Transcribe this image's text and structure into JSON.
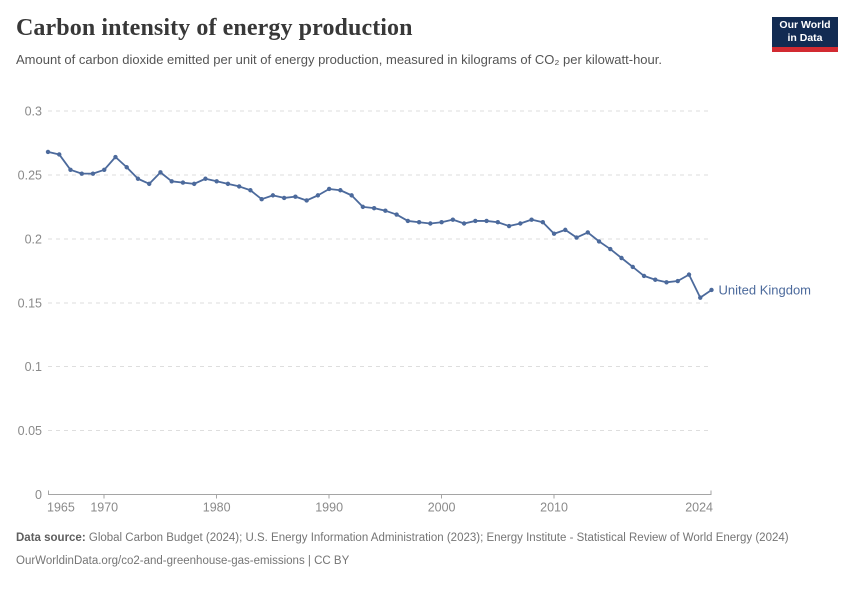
{
  "header": {
    "title": "Carbon intensity of energy production",
    "subtitle": "Amount of carbon dioxide emitted per unit of energy production, measured in kilograms of CO₂ per kilowatt-hour."
  },
  "logo": {
    "line1": "Our World",
    "line2": "in Data"
  },
  "colors": {
    "logo_bg": "#122B52",
    "logo_bar": "#D22A31",
    "accent_line": "#4C6A9C"
  },
  "chart_data": {
    "type": "line",
    "x": [
      1965,
      1966,
      1967,
      1968,
      1969,
      1970,
      1971,
      1972,
      1973,
      1974,
      1975,
      1976,
      1977,
      1978,
      1979,
      1980,
      1981,
      1982,
      1983,
      1984,
      1985,
      1986,
      1987,
      1988,
      1989,
      1990,
      1991,
      1992,
      1993,
      1994,
      1995,
      1996,
      1997,
      1998,
      1999,
      2000,
      2001,
      2002,
      2003,
      2004,
      2005,
      2006,
      2007,
      2008,
      2009,
      2010,
      2011,
      2012,
      2013,
      2014,
      2015,
      2016,
      2017,
      2018,
      2019,
      2020,
      2021,
      2022,
      2023,
      2024
    ],
    "series": [
      {
        "name": "United Kingdom",
        "color": "#4C6A9C",
        "values": [
          0.268,
          0.266,
          0.254,
          0.251,
          0.251,
          0.254,
          0.264,
          0.256,
          0.247,
          0.243,
          0.252,
          0.245,
          0.244,
          0.243,
          0.247,
          0.245,
          0.243,
          0.241,
          0.238,
          0.231,
          0.234,
          0.232,
          0.233,
          0.23,
          0.234,
          0.239,
          0.238,
          0.234,
          0.225,
          0.224,
          0.222,
          0.219,
          0.214,
          0.213,
          0.212,
          0.213,
          0.215,
          0.212,
          0.214,
          0.214,
          0.213,
          0.21,
          0.212,
          0.215,
          0.213,
          0.204,
          0.207,
          0.201,
          0.205,
          0.198,
          0.192,
          0.185,
          0.178,
          0.171,
          0.168,
          0.166,
          0.167,
          0.172,
          0.154,
          0.16
        ]
      }
    ],
    "ylim": [
      0,
      0.3
    ],
    "yticks": [
      0,
      0.05,
      0.1,
      0.15,
      0.2,
      0.25,
      0.3
    ],
    "xticks": [
      1965,
      1970,
      1980,
      1990,
      2000,
      2010,
      2024
    ],
    "grid": "horizontal-dashed",
    "legend_position": "end-of-line-label"
  },
  "footer": {
    "source_label": "Data source:",
    "source_text": "Global Carbon Budget (2024); U.S. Energy Information Administration (2023); Energy Institute - Statistical Review of World Energy (2024)",
    "url": "OurWorldinData.org/co2-and-greenhouse-gas-emissions",
    "separator": "|",
    "license": "CC BY"
  }
}
